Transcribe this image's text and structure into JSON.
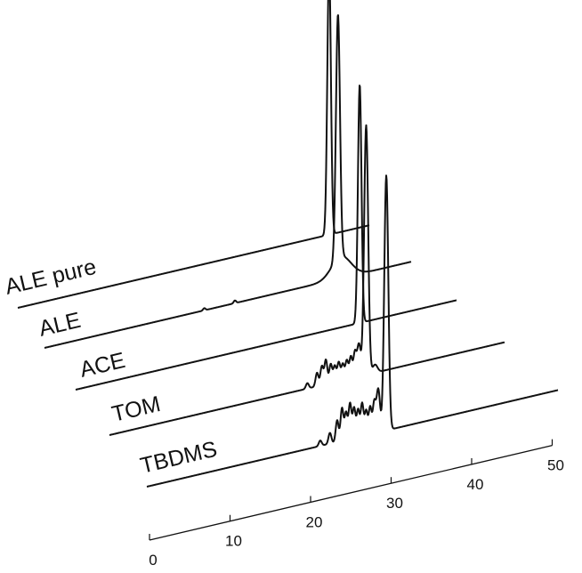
{
  "chart_data": {
    "type": "line",
    "style": "3d-waterfall",
    "title": "",
    "xlabel": "",
    "ylabel": "",
    "xlim": [
      0,
      50
    ],
    "x_ticks": [
      0,
      10,
      20,
      30,
      40,
      50
    ],
    "grid": false,
    "legend": "none",
    "series": [
      {
        "name": "ALE pure",
        "peaks": [
          {
            "x": 22.3,
            "height": 1.0,
            "width": 0.22
          }
        ]
      },
      {
        "name": "ALE",
        "peaks": [
          {
            "x": 6.8,
            "height": 0.008,
            "width": 0.15
          },
          {
            "x": 10.6,
            "height": 0.01,
            "width": 0.15
          },
          {
            "x": 23.4,
            "height": 0.9,
            "width": 0.25
          },
          {
            "x": 23.8,
            "height": 0.08,
            "width": 1.2
          }
        ]
      },
      {
        "name": "ACE",
        "peaks": [
          {
            "x": 26.1,
            "height": 0.88,
            "width": 0.22
          }
        ]
      },
      {
        "name": "TOM",
        "peaks": [
          {
            "x": 19.6,
            "height": 0.02,
            "width": 0.18
          },
          {
            "x": 20.8,
            "height": 0.05,
            "width": 0.18
          },
          {
            "x": 21.4,
            "height": 0.07,
            "width": 0.18
          },
          {
            "x": 21.9,
            "height": 0.09,
            "width": 0.18
          },
          {
            "x": 22.5,
            "height": 0.07,
            "width": 0.18
          },
          {
            "x": 23.0,
            "height": 0.06,
            "width": 0.18
          },
          {
            "x": 23.5,
            "height": 0.07,
            "width": 0.18
          },
          {
            "x": 24.0,
            "height": 0.06,
            "width": 0.18
          },
          {
            "x": 24.5,
            "height": 0.07,
            "width": 0.18
          },
          {
            "x": 25.0,
            "height": 0.08,
            "width": 0.18
          },
          {
            "x": 25.5,
            "height": 0.09,
            "width": 0.18
          },
          {
            "x": 26.0,
            "height": 0.12,
            "width": 0.22
          },
          {
            "x": 26.9,
            "height": 0.92,
            "width": 0.25
          },
          {
            "x": 28.0,
            "height": 0.03,
            "width": 0.3
          }
        ]
      },
      {
        "name": "TBDMS",
        "peaks": [
          {
            "x": 21.2,
            "height": 0.02,
            "width": 0.18
          },
          {
            "x": 22.4,
            "height": 0.04,
            "width": 0.18
          },
          {
            "x": 23.3,
            "height": 0.08,
            "width": 0.18
          },
          {
            "x": 23.9,
            "height": 0.12,
            "width": 0.18
          },
          {
            "x": 24.4,
            "height": 0.1,
            "width": 0.18
          },
          {
            "x": 24.9,
            "height": 0.13,
            "width": 0.18
          },
          {
            "x": 25.4,
            "height": 0.11,
            "width": 0.18
          },
          {
            "x": 25.9,
            "height": 0.1,
            "width": 0.18
          },
          {
            "x": 26.4,
            "height": 0.12,
            "width": 0.18
          },
          {
            "x": 26.9,
            "height": 0.09,
            "width": 0.18
          },
          {
            "x": 27.4,
            "height": 0.1,
            "width": 0.18
          },
          {
            "x": 27.9,
            "height": 0.11,
            "width": 0.18
          },
          {
            "x": 28.4,
            "height": 0.16,
            "width": 0.22
          },
          {
            "x": 29.4,
            "height": 0.94,
            "width": 0.25
          }
        ]
      }
    ]
  }
}
